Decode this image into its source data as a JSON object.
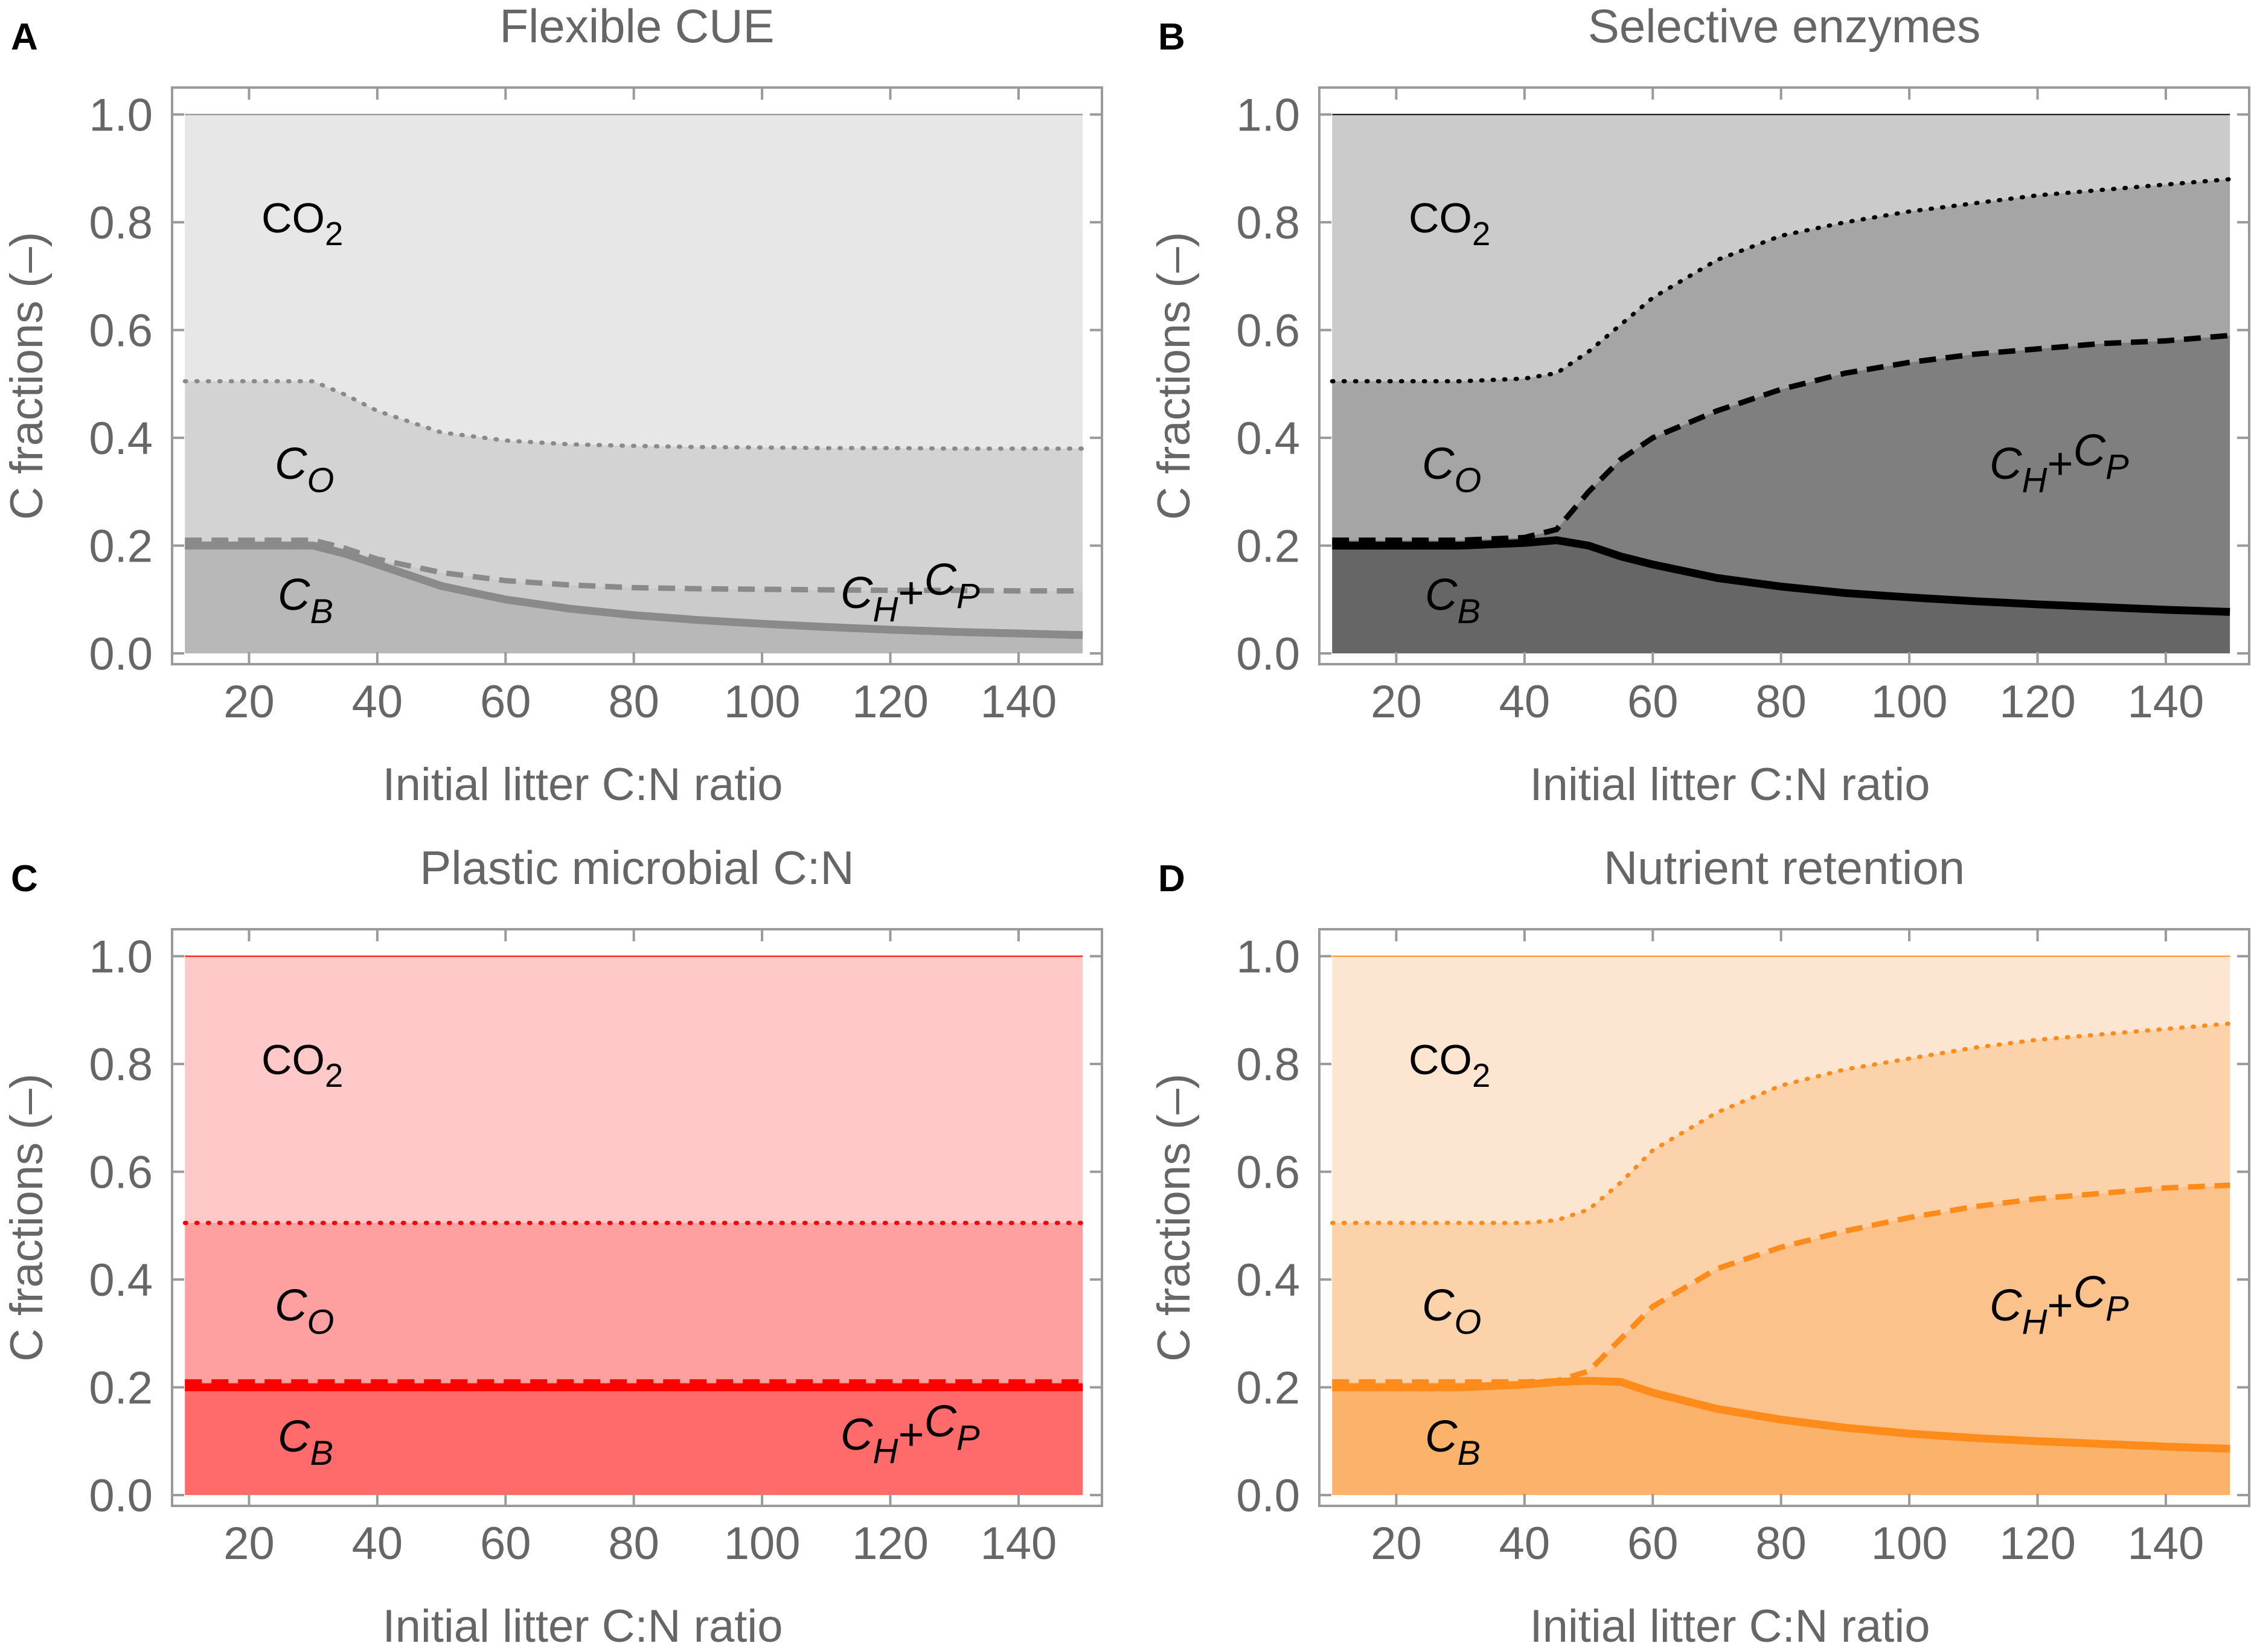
{
  "chart_data": [
    {
      "panel_letter": "A",
      "type": "area",
      "title": "Flexible CUE",
      "xlabel": "Initial litter C:N ratio",
      "ylabel": "C fractions (–)",
      "xlim": [
        8,
        153
      ],
      "ylim": [
        -0.02,
        1.05
      ],
      "xticks": [
        20,
        40,
        60,
        80,
        100,
        120,
        140
      ],
      "yticks": [
        "0.0",
        "0.2",
        "0.4",
        "0.6",
        "0.8",
        "1.0"
      ],
      "colors": {
        "top": "#e7e7e7",
        "mid": "#d3d3d3",
        "low": "#cbcbcb",
        "bottom": "#b8b8b8",
        "line": "#8a8a8a"
      },
      "x": [
        10,
        20,
        30,
        35,
        40,
        50,
        60,
        70,
        80,
        90,
        100,
        110,
        120,
        130,
        140,
        150
      ],
      "series": [
        {
          "name": "dotted (CO2 / CO boundary)",
          "style": "dotted",
          "values": [
            0.505,
            0.505,
            0.505,
            0.48,
            0.45,
            0.41,
            0.395,
            0.388,
            0.385,
            0.383,
            0.382,
            0.381,
            0.381,
            0.38,
            0.38,
            0.38
          ]
        },
        {
          "name": "dashed",
          "style": "dashed",
          "values": [
            0.21,
            0.21,
            0.21,
            0.195,
            0.175,
            0.15,
            0.135,
            0.127,
            0.122,
            0.12,
            0.119,
            0.118,
            0.117,
            0.117,
            0.116,
            0.116
          ]
        },
        {
          "name": "solid (CB)",
          "style": "solid",
          "values": [
            0.2,
            0.2,
            0.2,
            0.185,
            0.165,
            0.125,
            0.1,
            0.083,
            0.071,
            0.062,
            0.055,
            0.049,
            0.044,
            0.04,
            0.037,
            0.034
          ]
        }
      ],
      "labels": {
        "co2": "CO",
        "co2_sub": "2",
        "co": "C",
        "co_sub": "O",
        "cb": "C",
        "cb_sub": "B",
        "ch": "C",
        "ch_sub": "H",
        "plus": "+",
        "cp": "C",
        "cp_sub": "P"
      }
    },
    {
      "panel_letter": "B",
      "type": "area",
      "title": "Selective enzymes",
      "xlabel": "Initial litter C:N ratio",
      "ylabel": "C fractions (–)",
      "xlim": [
        8,
        153
      ],
      "ylim": [
        -0.02,
        1.05
      ],
      "xticks": [
        20,
        40,
        60,
        80,
        100,
        120,
        140
      ],
      "yticks": [
        "0.0",
        "0.2",
        "0.4",
        "0.6",
        "0.8",
        "1.0"
      ],
      "colors": {
        "top": "#cbcbcb",
        "mid": "#a5a5a5",
        "low": "#7f7f7f",
        "bottom": "#666666",
        "line": "#000000"
      },
      "x": [
        10,
        20,
        30,
        40,
        45,
        50,
        55,
        60,
        70,
        80,
        90,
        100,
        110,
        120,
        130,
        140,
        150
      ],
      "series": [
        {
          "name": "dotted (CO2 / CO boundary)",
          "style": "dotted",
          "values": [
            0.505,
            0.505,
            0.505,
            0.51,
            0.52,
            0.56,
            0.61,
            0.66,
            0.73,
            0.775,
            0.8,
            0.82,
            0.835,
            0.85,
            0.86,
            0.87,
            0.88
          ]
        },
        {
          "name": "dashed",
          "style": "dashed",
          "values": [
            0.21,
            0.21,
            0.21,
            0.215,
            0.23,
            0.3,
            0.36,
            0.4,
            0.45,
            0.49,
            0.52,
            0.54,
            0.555,
            0.565,
            0.575,
            0.58,
            0.59
          ]
        },
        {
          "name": "solid (CB)",
          "style": "solid",
          "values": [
            0.2,
            0.2,
            0.2,
            0.205,
            0.21,
            0.2,
            0.18,
            0.165,
            0.14,
            0.124,
            0.112,
            0.104,
            0.097,
            0.091,
            0.086,
            0.081,
            0.077
          ]
        }
      ],
      "labels": {
        "co2": "CO",
        "co2_sub": "2",
        "co": "C",
        "co_sub": "O",
        "cb": "C",
        "cb_sub": "B",
        "ch": "C",
        "ch_sub": "H",
        "plus": "+",
        "cp": "C",
        "cp_sub": "P"
      }
    },
    {
      "panel_letter": "C",
      "type": "area",
      "title": "Plastic microbial C:N",
      "xlabel": "Initial litter C:N ratio",
      "ylabel": "C fractions (–)",
      "xlim": [
        8,
        153
      ],
      "ylim": [
        -0.02,
        1.05
      ],
      "xticks": [
        20,
        40,
        60,
        80,
        100,
        120,
        140
      ],
      "yticks": [
        "0.0",
        "0.2",
        "0.4",
        "0.6",
        "0.8",
        "1.0"
      ],
      "colors": {
        "top": "#ffc9c9",
        "mid": "#ffa0a0",
        "low": "#ff8a8a",
        "bottom": "#ff6b6b",
        "line": "#ff0000"
      },
      "x": [
        10,
        150
      ],
      "series": [
        {
          "name": "dotted (CO2 / CO boundary)",
          "style": "dotted",
          "values": [
            0.505,
            0.505
          ]
        },
        {
          "name": "dashed",
          "style": "dashed",
          "values": [
            0.21,
            0.21
          ]
        },
        {
          "name": "solid (CB)",
          "style": "solid",
          "values": [
            0.2,
            0.2
          ]
        }
      ],
      "labels": {
        "co2": "CO",
        "co2_sub": "2",
        "co": "C",
        "co_sub": "O",
        "cb": "C",
        "cb_sub": "B",
        "ch": "C",
        "ch_sub": "H",
        "plus": "+",
        "cp": "C",
        "cp_sub": "P"
      }
    },
    {
      "panel_letter": "D",
      "type": "area",
      "title": "Nutrient retention",
      "xlabel": "Initial litter C:N ratio",
      "ylabel": "C fractions (–)",
      "xlim": [
        8,
        153
      ],
      "ylim": [
        -0.02,
        1.05
      ],
      "xticks": [
        20,
        40,
        60,
        80,
        100,
        120,
        140
      ],
      "yticks": [
        "0.0",
        "0.2",
        "0.4",
        "0.6",
        "0.8",
        "1.0"
      ],
      "colors": {
        "top": "#fde6d1",
        "mid": "#fbd2a9",
        "low": "#fbc38b",
        "bottom": "#fbb26a",
        "line": "#ff8c1a"
      },
      "x": [
        10,
        20,
        30,
        40,
        45,
        50,
        55,
        60,
        70,
        80,
        90,
        100,
        110,
        120,
        130,
        140,
        150
      ],
      "series": [
        {
          "name": "dotted (CO2 / CO boundary)",
          "style": "dotted",
          "values": [
            0.505,
            0.505,
            0.505,
            0.505,
            0.51,
            0.53,
            0.58,
            0.64,
            0.71,
            0.76,
            0.79,
            0.81,
            0.83,
            0.845,
            0.855,
            0.865,
            0.875
          ]
        },
        {
          "name": "dashed",
          "style": "dashed",
          "values": [
            0.21,
            0.21,
            0.21,
            0.21,
            0.212,
            0.23,
            0.29,
            0.35,
            0.42,
            0.46,
            0.49,
            0.515,
            0.535,
            0.55,
            0.56,
            0.57,
            0.575
          ]
        },
        {
          "name": "solid (CB)",
          "style": "solid",
          "values": [
            0.2,
            0.2,
            0.2,
            0.205,
            0.21,
            0.212,
            0.21,
            0.19,
            0.16,
            0.14,
            0.125,
            0.114,
            0.106,
            0.1,
            0.095,
            0.09,
            0.086
          ]
        }
      ],
      "labels": {
        "co2": "CO",
        "co2_sub": "2",
        "co": "C",
        "co_sub": "O",
        "cb": "C",
        "cb_sub": "B",
        "ch": "C",
        "ch_sub": "H",
        "plus": "+",
        "cp": "C",
        "cp_sub": "P"
      }
    }
  ]
}
